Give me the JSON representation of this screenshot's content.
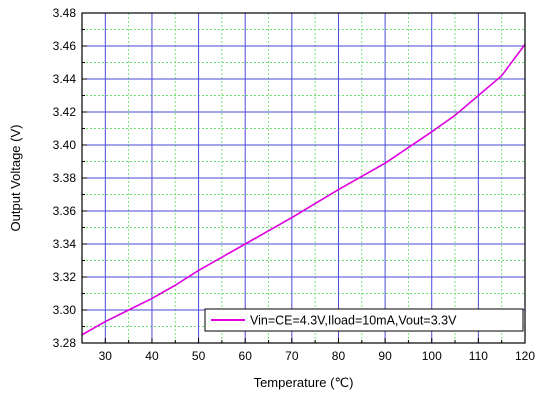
{
  "chart_data": {
    "type": "line",
    "title": "",
    "xlabel": "Temperature (℃)",
    "ylabel": "Output Voltage (V)",
    "xlim": [
      25,
      120
    ],
    "ylim": [
      3.28,
      3.48
    ],
    "x_ticks": [
      30,
      40,
      50,
      60,
      70,
      80,
      90,
      100,
      110,
      120
    ],
    "x_tick_labels": [
      "30",
      "40",
      "50",
      "60",
      "70",
      "80",
      "90",
      "100",
      "110",
      "120"
    ],
    "y_ticks": [
      3.28,
      3.3,
      3.32,
      3.34,
      3.36,
      3.38,
      3.4,
      3.42,
      3.44,
      3.46,
      3.48
    ],
    "y_tick_labels": [
      "3.28",
      "3.30",
      "3.32",
      "3.34",
      "3.36",
      "3.38",
      "3.40",
      "3.42",
      "3.44",
      "3.46",
      "3.48"
    ],
    "grid": true,
    "legend_position": "bottom-right",
    "series": [
      {
        "name": "Vin=CE=4.3V,Iload=10mA,Vout=3.3V",
        "color": "#e000e0",
        "x": [
          25,
          30,
          40,
          45,
          50,
          60,
          70,
          80,
          90,
          100,
          105,
          110,
          115,
          120
        ],
        "y": [
          3.285,
          3.293,
          3.307,
          3.315,
          3.324,
          3.34,
          3.356,
          3.373,
          3.389,
          3.408,
          3.418,
          3.43,
          3.442,
          3.461
        ]
      }
    ],
    "colors": {
      "major_grid": "#4a4ad8",
      "minor_grid": "#6fe06f",
      "axis": "#000000"
    }
  }
}
